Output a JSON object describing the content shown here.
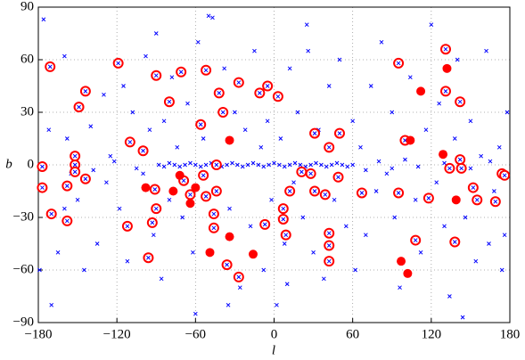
{
  "chart_data": {
    "type": "scatter",
    "x_label": "l",
    "y_label": "b",
    "xlim": [
      -180,
      180
    ],
    "ylim": [
      -90,
      90
    ],
    "xticks": [
      {
        "value": -180,
        "label": "−180"
      },
      {
        "value": -120,
        "label": "−120"
      },
      {
        "value": -60,
        "label": "−60"
      },
      0,
      60,
      120,
      180
    ],
    "yticks": [
      {
        "value": -90,
        "label": "−90"
      },
      {
        "value": -60,
        "label": "−60"
      },
      {
        "value": -30,
        "label": "−30"
      },
      0,
      30,
      60,
      90
    ],
    "grid": true,
    "series": [
      {
        "color": "#0000ff",
        "marker": "x",
        "x": [
          -88,
          -84,
          -80,
          -76,
          -72,
          -68,
          -64,
          -60,
          -56,
          -52,
          -48,
          -44,
          -40,
          -36,
          -32,
          -28,
          -24,
          -20,
          -16,
          -12,
          -8,
          -4,
          0,
          4,
          8,
          12,
          16,
          20,
          24,
          28,
          32,
          36,
          40,
          44,
          48,
          52,
          56,
          60,
          -176,
          -172,
          -165,
          -160,
          -158,
          -150,
          -145,
          -140,
          -135,
          -130,
          -128,
          -125,
          -118,
          -115,
          -112,
          -108,
          -100,
          -98,
          -95,
          -92,
          -86,
          -84,
          -80,
          -78,
          -74,
          -70,
          -66,
          -62,
          -58,
          -54,
          -50,
          -47,
          -42,
          -38,
          -34,
          -30,
          -26,
          -22,
          -18,
          -15,
          -10,
          -8,
          -5,
          -2,
          2,
          5,
          8,
          12,
          15,
          18,
          22,
          26,
          30,
          34,
          38,
          42,
          46,
          50,
          55,
          60,
          62,
          66,
          70,
          74,
          78,
          82,
          86,
          90,
          92,
          96,
          100,
          104,
          108,
          112,
          116,
          120,
          124,
          126,
          130,
          134,
          138,
          140,
          144,
          146,
          150,
          154,
          158,
          162,
          164,
          168,
          172,
          174,
          176,
          178,
          -179,
          -170,
          -155,
          -138,
          -122,
          -105,
          70,
          80,
          90,
          100,
          110,
          130,
          150,
          165,
          -160,
          -90,
          -60,
          25,
          10,
          -35
        ],
        "values": [
          0,
          -1,
          1,
          0,
          -1,
          0,
          1,
          0,
          -1,
          0,
          1,
          0,
          -1,
          0,
          1,
          0,
          -1,
          0,
          1,
          0,
          -1,
          0,
          1,
          0,
          -1,
          0,
          1,
          0,
          -1,
          0,
          1,
          0,
          -1,
          0,
          1,
          0,
          -1,
          0,
          83,
          20,
          -50,
          62,
          15,
          -20,
          -60,
          22,
          -45,
          40,
          -10,
          5,
          -25,
          45,
          -55,
          30,
          -5,
          62,
          20,
          -40,
          -65,
          25,
          -20,
          50,
          10,
          -30,
          35,
          -50,
          70,
          15,
          85,
          84,
          -15,
          55,
          -25,
          30,
          -70,
          20,
          -35,
          65,
          10,
          -60,
          25,
          -20,
          -80,
          15,
          -45,
          55,
          -10,
          30,
          -30,
          65,
          -50,
          20,
          -65,
          45,
          -20,
          60,
          -35,
          25,
          -60,
          10,
          -40,
          45,
          -15,
          70,
          -5,
          30,
          -30,
          -70,
          15,
          50,
          -20,
          -50,
          20,
          80,
          -10,
          35,
          -35,
          -75,
          15,
          60,
          -87,
          -30,
          25,
          -55,
          5,
          65,
          -45,
          -15,
          10,
          -60,
          -40,
          30,
          -60,
          -80,
          -5,
          -3,
          2,
          -2,
          -3,
          2,
          -2,
          3,
          -1,
          1,
          -2,
          2,
          -25,
          75,
          -85,
          80,
          -68,
          -80
        ]
      },
      {
        "color": "#ff0000",
        "marker": "circled-x",
        "x": [
          -52,
          -71,
          -90,
          -80,
          -42,
          -27,
          -39,
          -56,
          -11,
          -5,
          3,
          31,
          50,
          42,
          21,
          28,
          49,
          12,
          39,
          31,
          7,
          7,
          9,
          -7,
          42,
          42,
          42,
          -27,
          -36,
          -46,
          -46,
          -44,
          -52,
          -54,
          -44,
          -69,
          -64,
          -91,
          -90,
          -93,
          -96,
          -112,
          -110,
          -100,
          -119,
          -144,
          -149,
          -144,
          -158,
          -158,
          -170,
          -171,
          -177,
          -177,
          -152,
          -152,
          -152,
          95,
          100,
          131,
          131,
          142,
          134,
          142,
          143,
          95,
          118,
          67,
          108,
          138,
          152,
          155,
          169,
          174,
          176
        ],
        "values": [
          54,
          53,
          51,
          36,
          41,
          47,
          30,
          23,
          41,
          45,
          39,
          18,
          18,
          10,
          -4,
          -5,
          -7,
          -15,
          -17,
          -15,
          -25,
          -31,
          -40,
          -34,
          -39,
          -46,
          -55,
          -64,
          -57,
          -36,
          -28,
          -15,
          -18,
          -6,
          0,
          -9,
          -17,
          -14,
          -25,
          -33,
          -53,
          -35,
          13,
          8,
          58,
          42,
          33,
          -8,
          -12,
          -32,
          -28,
          56,
          -1,
          -13,
          5,
          0,
          -4,
          58,
          14,
          66,
          42,
          36,
          -2,
          3,
          -2,
          -16,
          -19,
          -16,
          -43,
          -44,
          -13,
          -20,
          -21,
          -5,
          -6
        ]
      },
      {
        "color": "#ff0000",
        "marker": "dot",
        "x": [
          -60,
          -98,
          -34,
          -77,
          -64,
          -72,
          -49,
          -34,
          -16,
          104,
          112,
          132,
          129,
          139,
          97,
          102
        ],
        "values": [
          -13,
          -13,
          14,
          -15,
          -22,
          -6,
          -50,
          -41,
          -51,
          14,
          42,
          55,
          6,
          -20,
          -55,
          -62
        ]
      }
    ]
  }
}
